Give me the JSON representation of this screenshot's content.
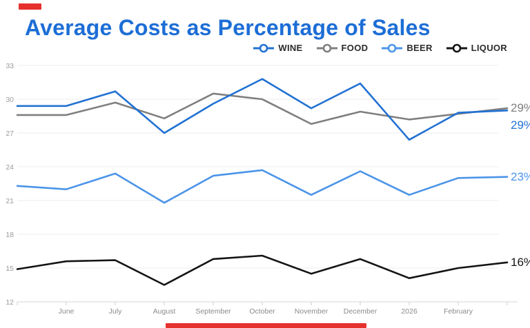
{
  "header": {
    "title": "Average Costs as Percentage of Sales",
    "title_color": "#1d6ed6"
  },
  "legend": {
    "items": [
      {
        "label": "WINE",
        "color": "#2171d3"
      },
      {
        "label": "FOOD",
        "color": "#7f7f7f"
      },
      {
        "label": "BEER",
        "color": "#4b94e8"
      },
      {
        "label": "LIQUOR",
        "color": "#141414"
      }
    ]
  },
  "decor": {
    "accent_red": "#e5302e"
  },
  "chart_data": {
    "type": "line",
    "categories": [
      "",
      "June",
      "July",
      "August",
      "September",
      "October",
      "November",
      "December",
      "2026",
      "February",
      ""
    ],
    "series": [
      {
        "name": "WINE",
        "color": "#2171d3",
        "end_label": "29%",
        "values": [
          29.4,
          29.4,
          30.7,
          27.0,
          29.6,
          31.8,
          29.2,
          31.4,
          26.4,
          28.8,
          29.0
        ]
      },
      {
        "name": "FOOD",
        "color": "#7f7f7f",
        "end_label": "29%",
        "values": [
          28.6,
          28.6,
          29.7,
          28.3,
          30.5,
          30.0,
          27.8,
          28.9,
          28.2,
          28.7,
          29.2
        ]
      },
      {
        "name": "BEER",
        "color": "#4b94e8",
        "end_label": "23%",
        "values": [
          22.3,
          22.0,
          23.4,
          20.8,
          23.2,
          23.7,
          21.5,
          23.6,
          21.5,
          23.0,
          23.1
        ]
      },
      {
        "name": "LIQUOR",
        "color": "#141414",
        "end_label": "16%",
        "values": [
          14.9,
          15.6,
          15.7,
          13.5,
          15.8,
          16.1,
          14.5,
          15.8,
          14.1,
          15.0,
          15.5
        ]
      }
    ],
    "yticks": [
      12,
      15,
      18,
      21,
      24,
      27,
      30,
      33
    ],
    "ylim": [
      12,
      33
    ],
    "grid": true,
    "legend_position": "top-right",
    "title": "Average Costs as Percentage of Sales",
    "xlabel": "",
    "ylabel": ""
  }
}
